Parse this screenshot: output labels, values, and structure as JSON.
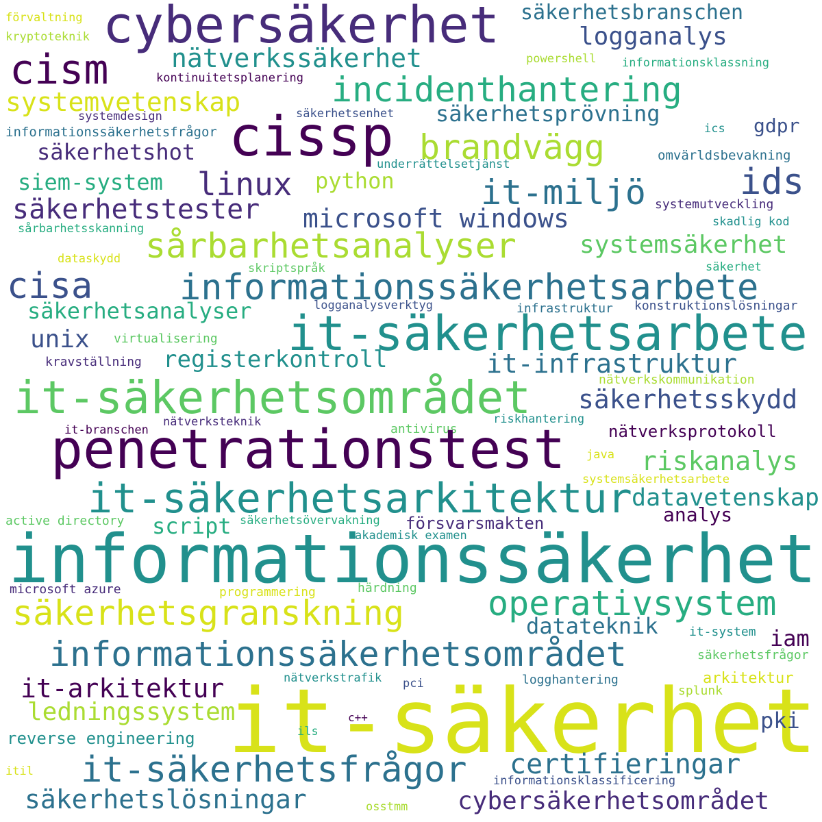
{
  "colors": {
    "background": "#ffffff",
    "palette": {
      "dark_purple": "#440154",
      "purple": "#472c7a",
      "indigo": "#3b518b",
      "blue": "#2c718e",
      "teal": "#21908d",
      "green_teal": "#27ad81",
      "green": "#5cc863",
      "lime": "#aadc32",
      "yellow": "#d8e219"
    }
  },
  "words": [
    {
      "text": "förvaltning"
    },
    {
      "text": "kryptoteknik"
    },
    {
      "text": "cybersäkerhet"
    },
    {
      "text": "säkerhetsbranschen"
    },
    {
      "text": "logganalys"
    },
    {
      "text": "cism"
    },
    {
      "text": "nätverkssäkerhet"
    },
    {
      "text": "powershell"
    },
    {
      "text": "informationsklassning"
    },
    {
      "text": "kontinuitetsplanering"
    },
    {
      "text": "incidenthantering"
    },
    {
      "text": "systemvetenskap"
    },
    {
      "text": "säkerhetsprövning"
    },
    {
      "text": "systemdesign"
    },
    {
      "text": "säkerhetsenhet"
    },
    {
      "text": "cissp"
    },
    {
      "text": "gdpr"
    },
    {
      "text": "informationssäkerhetsfrågor"
    },
    {
      "text": "ics"
    },
    {
      "text": "brandvägg"
    },
    {
      "text": "säkerhetshot"
    },
    {
      "text": "omvärldsbevakning"
    },
    {
      "text": "underrättelsetjänst"
    },
    {
      "text": "ids"
    },
    {
      "text": "linux"
    },
    {
      "text": "siem-system"
    },
    {
      "text": "python"
    },
    {
      "text": "it-miljö"
    },
    {
      "text": "systemutveckling"
    },
    {
      "text": "säkerhetstester"
    },
    {
      "text": "microsoft windows"
    },
    {
      "text": "skadlig kod"
    },
    {
      "text": "sårbarhetsskanning"
    },
    {
      "text": "sårbarhetsanalyser"
    },
    {
      "text": "systemsäkerhet"
    },
    {
      "text": "dataskydd"
    },
    {
      "text": "skriptspråk"
    },
    {
      "text": "säkerhet"
    },
    {
      "text": "cisa"
    },
    {
      "text": "informationssäkerhetsarbete"
    },
    {
      "text": "logganalysverktyg"
    },
    {
      "text": "infrastruktur"
    },
    {
      "text": "konstruktionslösningar"
    },
    {
      "text": "säkerhetsanalyser"
    },
    {
      "text": "it-säkerhetsarbete"
    },
    {
      "text": "unix"
    },
    {
      "text": "virtualisering"
    },
    {
      "text": "registerkontroll"
    },
    {
      "text": "kravställning"
    },
    {
      "text": "it-infrastruktur"
    },
    {
      "text": "nätverkskommunikation"
    },
    {
      "text": "it-säkerhetsområdet"
    },
    {
      "text": "säkerhetsskydd"
    },
    {
      "text": "nätverksteknik"
    },
    {
      "text": "riskhantering"
    },
    {
      "text": "it-branschen"
    },
    {
      "text": "antivirus"
    },
    {
      "text": "nätverksprotokoll"
    },
    {
      "text": "penetrationstest"
    },
    {
      "text": "java"
    },
    {
      "text": "riskanalys"
    },
    {
      "text": "systemsäkerhetsarbete"
    },
    {
      "text": "it-säkerhetsarkitektur"
    },
    {
      "text": "datavetenskap"
    },
    {
      "text": "active directory"
    },
    {
      "text": "säkerhetsövervakning"
    },
    {
      "text": "script"
    },
    {
      "text": "försvarsmakten"
    },
    {
      "text": "analys"
    },
    {
      "text": "akademisk examen"
    },
    {
      "text": "informationssäkerhet"
    },
    {
      "text": "microsoft azure"
    },
    {
      "text": "härdning"
    },
    {
      "text": "programmering"
    },
    {
      "text": "operativsystem"
    },
    {
      "text": "säkerhetsgranskning"
    },
    {
      "text": "datateknik"
    },
    {
      "text": "it-system"
    },
    {
      "text": "iam"
    },
    {
      "text": "informationssäkerhetsområdet"
    },
    {
      "text": "säkerhetsfrågor"
    },
    {
      "text": "it-arkitektur"
    },
    {
      "text": "nätverkstrafik"
    },
    {
      "text": "pci"
    },
    {
      "text": "logghantering"
    },
    {
      "text": "arkitektur"
    },
    {
      "text": "splunk"
    },
    {
      "text": "ledningssystem"
    },
    {
      "text": "it-säkerhet"
    },
    {
      "text": "c++"
    },
    {
      "text": "pki"
    },
    {
      "text": "reverse engineering"
    },
    {
      "text": "ils"
    },
    {
      "text": "itil"
    },
    {
      "text": "it-säkerhetsfrågor"
    },
    {
      "text": "certifieringar"
    },
    {
      "text": "informationsklassificering"
    },
    {
      "text": "säkerhetslösningar"
    },
    {
      "text": "osstmm"
    },
    {
      "text": "cybersäkerhetsområdet"
    }
  ]
}
